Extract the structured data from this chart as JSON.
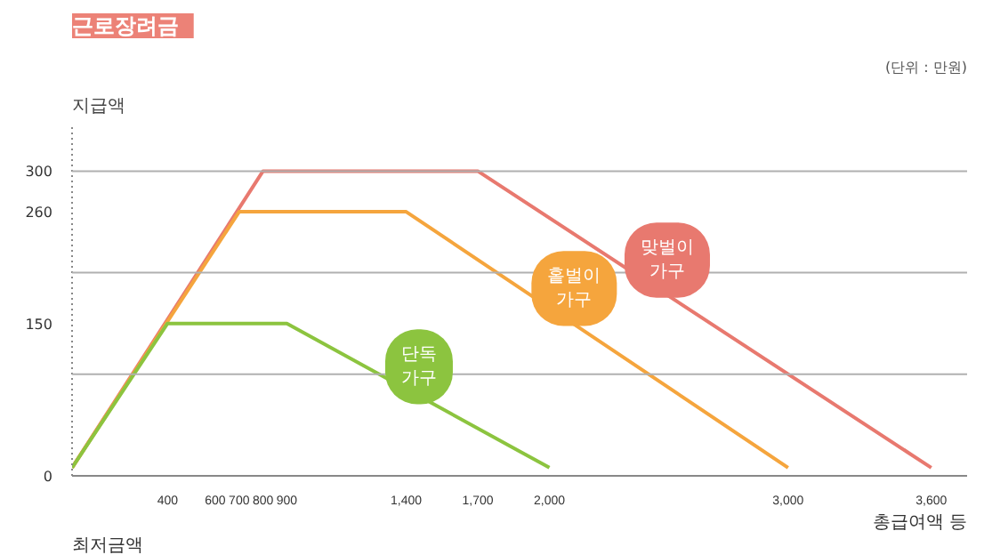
{
  "chart_data": {
    "type": "line",
    "title": "근로장려금",
    "subtitle": "(단위 : 만원)",
    "ylabel": "지급액",
    "xlabel": "총급여액 등",
    "annotations": [
      "최저금액"
    ],
    "series": [
      {
        "name": "맞벌이 가구",
        "color": "#e8796f",
        "x": [
          0,
          800,
          1700,
          3600
        ],
        "values": [
          8,
          300,
          300,
          8
        ]
      },
      {
        "name": "홑벌이 가구",
        "color": "#f5a53d",
        "x": [
          0,
          700,
          1400,
          3000
        ],
        "values": [
          8,
          260,
          260,
          8
        ]
      },
      {
        "name": "단독 가구",
        "color": "#8cc43f",
        "x": [
          0,
          400,
          900,
          2000
        ],
        "values": [
          8,
          150,
          150,
          8
        ]
      }
    ],
    "xlim": [
      0,
      3750
    ],
    "xticks": [
      {
        "value": 400,
        "label": "400"
      },
      {
        "value": 600,
        "label": "600"
      },
      {
        "value": 700,
        "label": "700"
      },
      {
        "value": 800,
        "label": "800"
      },
      {
        "value": 900,
        "label": "900"
      },
      {
        "value": 1400,
        "label": "1,400"
      },
      {
        "value": 1700,
        "label": "1,700"
      },
      {
        "value": 2000,
        "label": "2,000"
      },
      {
        "value": 3000,
        "label": "3,000"
      },
      {
        "value": 3600,
        "label": "3,600"
      }
    ],
    "ylim": [
      0,
      345
    ],
    "yticks": [
      0,
      150,
      260,
      300
    ],
    "ref_lines": [
      {
        "axis": "y",
        "value": 100,
        "color": "#b0b0b0"
      },
      {
        "axis": "y",
        "value": 200,
        "color": "#b0b0b0"
      },
      {
        "axis": "y",
        "value": 300,
        "color": "#b0b0b0"
      }
    ],
    "grid": false,
    "legend": false,
    "marker": "none",
    "line_style": "solid"
  }
}
